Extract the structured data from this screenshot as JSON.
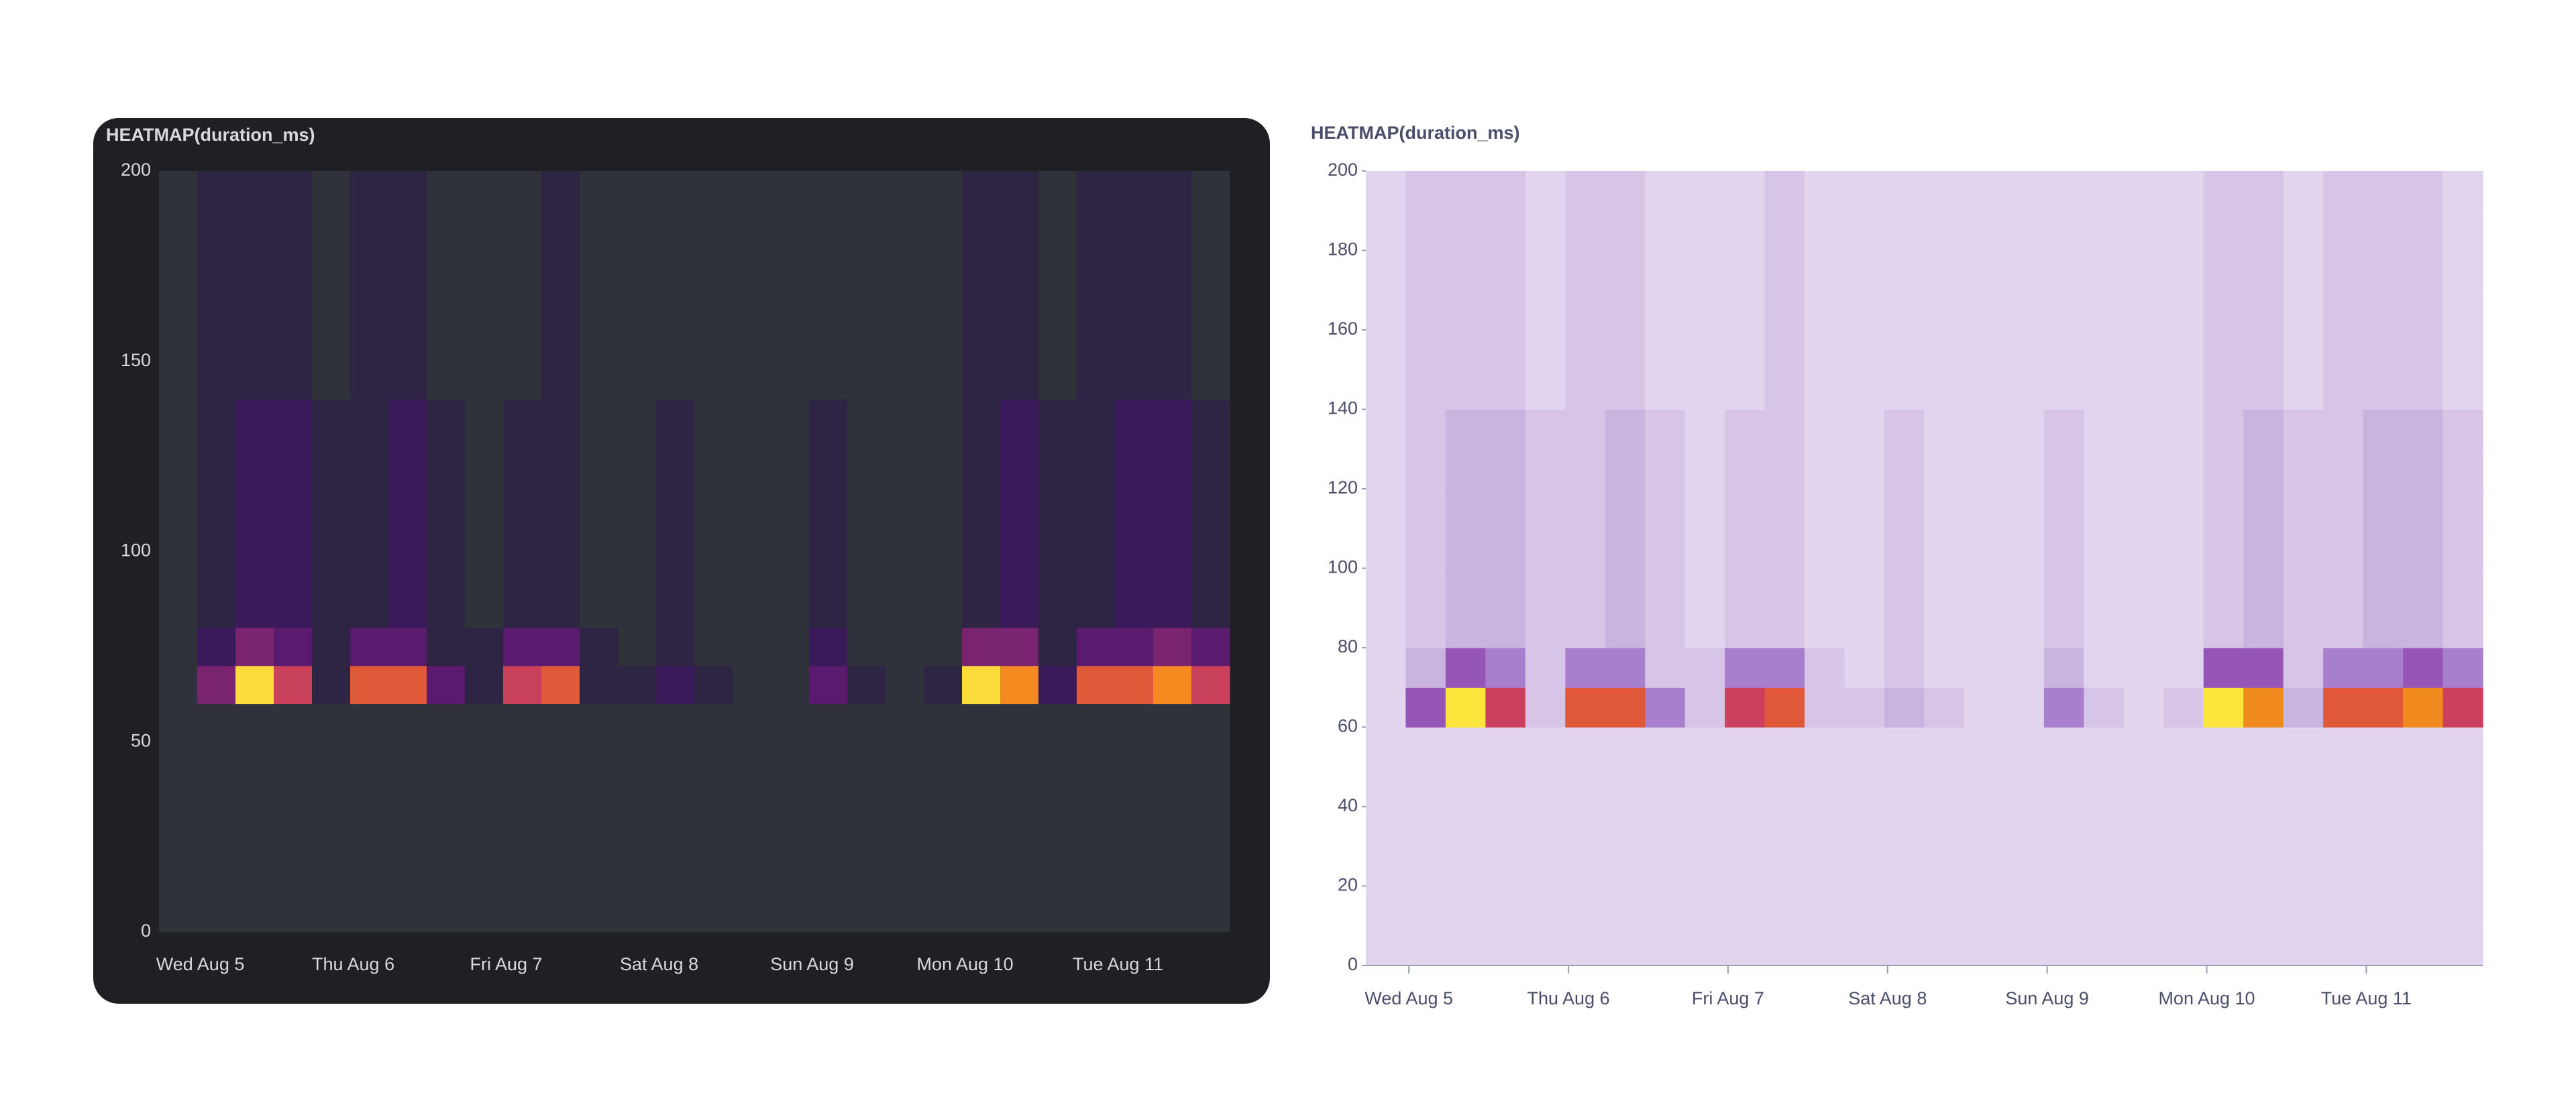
{
  "chart_data": [
    {
      "type": "heatmap",
      "title": "HEATMAP(duration_ms)",
      "background": "#1f2023",
      "text_color": "#d8d9dc",
      "plot_color": "#2f3136",
      "palette": [
        "#30323a",
        "#2e2444",
        "#3b1a5c",
        "#5a1a6e",
        "#7a2470",
        "#a0306a",
        "#c8405a",
        "#e05a3a",
        "#f58a20",
        "#fcdc3c"
      ],
      "xlim": [
        -0.27,
        6.73
      ],
      "xticks": [
        {
          "value": 0,
          "label": "Wed Aug 5"
        },
        {
          "value": 1,
          "label": "Thu Aug 6"
        },
        {
          "value": 2,
          "label": "Fri Aug 7"
        },
        {
          "value": 3,
          "label": "Sat Aug 8"
        },
        {
          "value": 4,
          "label": "Sun Aug 9"
        },
        {
          "value": 5,
          "label": "Mon Aug 10"
        },
        {
          "value": 6,
          "label": "Tue Aug 11"
        }
      ],
      "ylim": [
        0,
        200
      ],
      "yticks": [
        0,
        50,
        100,
        150,
        200
      ],
      "z": [
        [
          0,
          0,
          0,
          0,
          0,
          0,
          0,
          0,
          0,
          0,
          0,
          0,
          0,
          0,
          0,
          0,
          0,
          0,
          0,
          0,
          0,
          0,
          0,
          0,
          0,
          0,
          0,
          0
        ],
        [
          0,
          0,
          0,
          0,
          0,
          0,
          0,
          0,
          0,
          0,
          0,
          0,
          0,
          0,
          0,
          0,
          0,
          0,
          0,
          0,
          0,
          0,
          0,
          0,
          0,
          0,
          0,
          0
        ],
        [
          0,
          0,
          0,
          0,
          0,
          0,
          0,
          0,
          0,
          0,
          0,
          0,
          0,
          0,
          0,
          0,
          0,
          0,
          0,
          0,
          0,
          0,
          0,
          0,
          0,
          0,
          0,
          0
        ],
        [
          0,
          0,
          0,
          0,
          0,
          0,
          0,
          0,
          0,
          0,
          0,
          0,
          0,
          0,
          0,
          0,
          0,
          0,
          0,
          0,
          0,
          0,
          0,
          0,
          0,
          0,
          0,
          0
        ],
        [
          0,
          0,
          0,
          0,
          0,
          0,
          0,
          0,
          0,
          0,
          0,
          0,
          0,
          0,
          0,
          0,
          0,
          0,
          0,
          0,
          0,
          0,
          0,
          0,
          0,
          0,
          0,
          0
        ],
        [
          0,
          0,
          0,
          0,
          0,
          0,
          0,
          0,
          0,
          0,
          0,
          0,
          0,
          0,
          0,
          0,
          0,
          0,
          0,
          0,
          0,
          0,
          0,
          0,
          0,
          0,
          0,
          0
        ],
        [
          0,
          4,
          9,
          6,
          1,
          7,
          7,
          3,
          1,
          6,
          7,
          1,
          1,
          2,
          1,
          0,
          0,
          3,
          1,
          0,
          1,
          9,
          8,
          2,
          7,
          7,
          8,
          6
        ],
        [
          0,
          2,
          4,
          3,
          1,
          3,
          3,
          1,
          1,
          3,
          3,
          1,
          0,
          1,
          0,
          0,
          0,
          2,
          0,
          0,
          0,
          4,
          4,
          1,
          3,
          3,
          4,
          3
        ],
        [
          0,
          1,
          2,
          2,
          1,
          1,
          2,
          1,
          0,
          1,
          1,
          0,
          0,
          1,
          0,
          0,
          0,
          1,
          0,
          0,
          0,
          1,
          2,
          1,
          1,
          2,
          2,
          1
        ],
        [
          0,
          1,
          2,
          2,
          1,
          1,
          2,
          1,
          0,
          1,
          1,
          0,
          0,
          1,
          0,
          0,
          0,
          1,
          0,
          0,
          0,
          1,
          2,
          1,
          1,
          2,
          2,
          1
        ],
        [
          0,
          1,
          2,
          2,
          1,
          1,
          2,
          1,
          0,
          1,
          1,
          0,
          0,
          1,
          0,
          0,
          0,
          1,
          0,
          0,
          0,
          1,
          2,
          1,
          1,
          2,
          2,
          1
        ],
        [
          0,
          1,
          2,
          2,
          1,
          1,
          2,
          1,
          0,
          1,
          1,
          0,
          0,
          1,
          0,
          0,
          0,
          1,
          0,
          0,
          0,
          1,
          2,
          1,
          1,
          2,
          2,
          1
        ],
        [
          0,
          1,
          2,
          2,
          1,
          1,
          2,
          1,
          0,
          1,
          1,
          0,
          0,
          1,
          0,
          0,
          0,
          1,
          0,
          0,
          0,
          1,
          2,
          1,
          1,
          2,
          2,
          1
        ],
        [
          0,
          1,
          2,
          2,
          1,
          1,
          2,
          1,
          0,
          1,
          1,
          0,
          0,
          1,
          0,
          0,
          0,
          1,
          0,
          0,
          0,
          1,
          2,
          1,
          1,
          2,
          2,
          1
        ],
        [
          0,
          1,
          1,
          1,
          0,
          1,
          1,
          0,
          0,
          0,
          1,
          0,
          0,
          0,
          0,
          0,
          0,
          0,
          0,
          0,
          0,
          1,
          1,
          0,
          1,
          1,
          1,
          0
        ],
        [
          0,
          1,
          1,
          1,
          0,
          1,
          1,
          0,
          0,
          0,
          1,
          0,
          0,
          0,
          0,
          0,
          0,
          0,
          0,
          0,
          0,
          1,
          1,
          0,
          1,
          1,
          1,
          0
        ],
        [
          0,
          1,
          1,
          1,
          0,
          1,
          1,
          0,
          0,
          0,
          1,
          0,
          0,
          0,
          0,
          0,
          0,
          0,
          0,
          0,
          0,
          1,
          1,
          0,
          1,
          1,
          1,
          0
        ],
        [
          0,
          1,
          1,
          1,
          0,
          1,
          1,
          0,
          0,
          0,
          1,
          0,
          0,
          0,
          0,
          0,
          0,
          0,
          0,
          0,
          0,
          1,
          1,
          0,
          1,
          1,
          1,
          0
        ],
        [
          0,
          1,
          1,
          1,
          0,
          1,
          1,
          0,
          0,
          0,
          1,
          0,
          0,
          0,
          0,
          0,
          0,
          0,
          0,
          0,
          0,
          1,
          1,
          0,
          1,
          1,
          1,
          0
        ],
        [
          0,
          1,
          1,
          1,
          0,
          1,
          1,
          0,
          0,
          0,
          1,
          0,
          0,
          0,
          0,
          0,
          0,
          0,
          0,
          0,
          0,
          1,
          1,
          0,
          1,
          1,
          1,
          0
        ]
      ]
    },
    {
      "type": "heatmap",
      "title": "HEATMAP(duration_ms)",
      "background": "#ffffff",
      "text_color": "#4a4e6a",
      "plot_color": "#e1d4ee",
      "palette": [
        "#e1d4ee",
        "#d6c5e7",
        "#c9b3df",
        "#a77fcc",
        "#9556b7",
        "#b24a8f",
        "#cc3f5e",
        "#e0583a",
        "#f08a1f",
        "#fce63c"
      ],
      "xlim": [
        -0.27,
        6.73
      ],
      "xticks": [
        {
          "value": 0,
          "label": "Wed Aug 5"
        },
        {
          "value": 1,
          "label": "Thu Aug 6"
        },
        {
          "value": 2,
          "label": "Fri Aug 7"
        },
        {
          "value": 3,
          "label": "Sat Aug 8"
        },
        {
          "value": 4,
          "label": "Sun Aug 9"
        },
        {
          "value": 5,
          "label": "Mon Aug 10"
        },
        {
          "value": 6,
          "label": "Tue Aug 11"
        }
      ],
      "ylim": [
        0,
        200
      ],
      "yticks": [
        0,
        20,
        40,
        60,
        80,
        100,
        120,
        140,
        160,
        180,
        200
      ],
      "z": [
        [
          0,
          0,
          0,
          0,
          0,
          0,
          0,
          0,
          0,
          0,
          0,
          0,
          0,
          0,
          0,
          0,
          0,
          0,
          0,
          0,
          0,
          0,
          0,
          0,
          0,
          0,
          0,
          0
        ],
        [
          0,
          0,
          0,
          0,
          0,
          0,
          0,
          0,
          0,
          0,
          0,
          0,
          0,
          0,
          0,
          0,
          0,
          0,
          0,
          0,
          0,
          0,
          0,
          0,
          0,
          0,
          0,
          0
        ],
        [
          0,
          0,
          0,
          0,
          0,
          0,
          0,
          0,
          0,
          0,
          0,
          0,
          0,
          0,
          0,
          0,
          0,
          0,
          0,
          0,
          0,
          0,
          0,
          0,
          0,
          0,
          0,
          0
        ],
        [
          0,
          0,
          0,
          0,
          0,
          0,
          0,
          0,
          0,
          0,
          0,
          0,
          0,
          0,
          0,
          0,
          0,
          0,
          0,
          0,
          0,
          0,
          0,
          0,
          0,
          0,
          0,
          0
        ],
        [
          0,
          0,
          0,
          0,
          0,
          0,
          0,
          0,
          0,
          0,
          0,
          0,
          0,
          0,
          0,
          0,
          0,
          0,
          0,
          0,
          0,
          0,
          0,
          0,
          0,
          0,
          0,
          0
        ],
        [
          0,
          0,
          0,
          0,
          0,
          0,
          0,
          0,
          0,
          0,
          0,
          0,
          0,
          0,
          0,
          0,
          0,
          0,
          0,
          0,
          0,
          0,
          0,
          0,
          0,
          0,
          0,
          0
        ],
        [
          0,
          4,
          9,
          6,
          1,
          7,
          7,
          3,
          1,
          6,
          7,
          1,
          1,
          2,
          1,
          0,
          0,
          3,
          1,
          0,
          1,
          9,
          8,
          2,
          7,
          7,
          8,
          6
        ],
        [
          0,
          2,
          4,
          3,
          1,
          3,
          3,
          1,
          1,
          3,
          3,
          1,
          0,
          1,
          0,
          0,
          0,
          2,
          0,
          0,
          0,
          4,
          4,
          1,
          3,
          3,
          4,
          3
        ],
        [
          0,
          1,
          2,
          2,
          1,
          1,
          2,
          1,
          0,
          1,
          1,
          0,
          0,
          1,
          0,
          0,
          0,
          1,
          0,
          0,
          0,
          1,
          2,
          1,
          1,
          2,
          2,
          1
        ],
        [
          0,
          1,
          2,
          2,
          1,
          1,
          2,
          1,
          0,
          1,
          1,
          0,
          0,
          1,
          0,
          0,
          0,
          1,
          0,
          0,
          0,
          1,
          2,
          1,
          1,
          2,
          2,
          1
        ],
        [
          0,
          1,
          2,
          2,
          1,
          1,
          2,
          1,
          0,
          1,
          1,
          0,
          0,
          1,
          0,
          0,
          0,
          1,
          0,
          0,
          0,
          1,
          2,
          1,
          1,
          2,
          2,
          1
        ],
        [
          0,
          1,
          2,
          2,
          1,
          1,
          2,
          1,
          0,
          1,
          1,
          0,
          0,
          1,
          0,
          0,
          0,
          1,
          0,
          0,
          0,
          1,
          2,
          1,
          1,
          2,
          2,
          1
        ],
        [
          0,
          1,
          2,
          2,
          1,
          1,
          2,
          1,
          0,
          1,
          1,
          0,
          0,
          1,
          0,
          0,
          0,
          1,
          0,
          0,
          0,
          1,
          2,
          1,
          1,
          2,
          2,
          1
        ],
        [
          0,
          1,
          2,
          2,
          1,
          1,
          2,
          1,
          0,
          1,
          1,
          0,
          0,
          1,
          0,
          0,
          0,
          1,
          0,
          0,
          0,
          1,
          2,
          1,
          1,
          2,
          2,
          1
        ],
        [
          0,
          1,
          1,
          1,
          0,
          1,
          1,
          0,
          0,
          0,
          1,
          0,
          0,
          0,
          0,
          0,
          0,
          0,
          0,
          0,
          0,
          1,
          1,
          0,
          1,
          1,
          1,
          0
        ],
        [
          0,
          1,
          1,
          1,
          0,
          1,
          1,
          0,
          0,
          0,
          1,
          0,
          0,
          0,
          0,
          0,
          0,
          0,
          0,
          0,
          0,
          1,
          1,
          0,
          1,
          1,
          1,
          0
        ],
        [
          0,
          1,
          1,
          1,
          0,
          1,
          1,
          0,
          0,
          0,
          1,
          0,
          0,
          0,
          0,
          0,
          0,
          0,
          0,
          0,
          0,
          1,
          1,
          0,
          1,
          1,
          1,
          0
        ],
        [
          0,
          1,
          1,
          1,
          0,
          1,
          1,
          0,
          0,
          0,
          1,
          0,
          0,
          0,
          0,
          0,
          0,
          0,
          0,
          0,
          0,
          1,
          1,
          0,
          1,
          1,
          1,
          0
        ],
        [
          0,
          1,
          1,
          1,
          0,
          1,
          1,
          0,
          0,
          0,
          1,
          0,
          0,
          0,
          0,
          0,
          0,
          0,
          0,
          0,
          0,
          1,
          1,
          0,
          1,
          1,
          1,
          0
        ],
        [
          0,
          1,
          1,
          1,
          0,
          1,
          1,
          0,
          0,
          0,
          1,
          0,
          0,
          0,
          0,
          0,
          0,
          0,
          0,
          0,
          0,
          1,
          1,
          0,
          1,
          1,
          1,
          0
        ]
      ]
    }
  ]
}
